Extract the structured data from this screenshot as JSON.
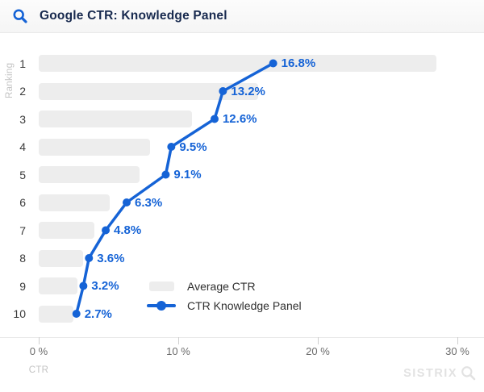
{
  "header": {
    "title": "Google CTR: Knowledge Panel"
  },
  "chart_data": {
    "type": "bar",
    "orientation": "horizontal",
    "title": "Google CTR: Knowledge Panel",
    "categories": [
      "1",
      "2",
      "3",
      "4",
      "5",
      "6",
      "7",
      "8",
      "9",
      "10"
    ],
    "ylabel": "Ranking",
    "xlabel": "CTR",
    "xlim": [
      0,
      31.9
    ],
    "grid": false,
    "legend_position": "inside-bottom-center",
    "x_ticks": [
      {
        "value": 0,
        "label": "0 %"
      },
      {
        "value": 10,
        "label": "10 %"
      },
      {
        "value": 20,
        "label": "20 %"
      },
      {
        "value": 30,
        "label": "30 %"
      }
    ],
    "series": [
      {
        "name": "Average CTR",
        "type": "bar",
        "color": "#ededed",
        "values": [
          28.5,
          15.7,
          11.0,
          8.0,
          7.2,
          5.1,
          4.0,
          3.2,
          2.8,
          2.5
        ]
      },
      {
        "name": "CTR Knowledge Panel",
        "type": "line",
        "color": "#1563d6",
        "values": [
          16.8,
          13.2,
          12.6,
          9.5,
          9.1,
          6.3,
          4.8,
          3.6,
          3.2,
          2.7
        ],
        "labels": [
          "16.8%",
          "13.2%",
          "12.6%",
          "9.5%",
          "9.1%",
          "6.3%",
          "4.8%",
          "3.6%",
          "3.2%",
          "2.7%"
        ]
      }
    ]
  },
  "branding": {
    "logo_text": "SISTRIX"
  },
  "colors": {
    "accent_blue": "#1563d6",
    "bar_gray": "#ededed",
    "title_navy": "#17294e"
  }
}
